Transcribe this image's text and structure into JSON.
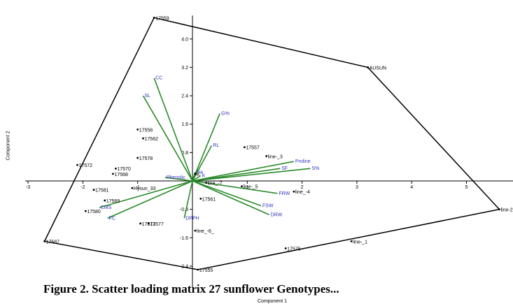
{
  "caption": "Figure 2. Scatter loading matrix 27 sunflower Genotypes...",
  "chart_data": {
    "type": "biplot",
    "xlabel": "Component 1",
    "ylabel": "Component 2",
    "xlim": [
      -3,
      6
    ],
    "ylim": [
      -2.8,
      4.7
    ],
    "x_ticks": [
      -3,
      -2,
      -1,
      1,
      2,
      3,
      4,
      5
    ],
    "y_ticks": [
      -2.4,
      -1.6,
      -0.8,
      0.8,
      1.6,
      2.4,
      3.2,
      4.0
    ],
    "grid": false,
    "points": [
      {
        "label": "17559",
        "x": -0.7,
        "y": 4.6
      },
      {
        "label": "AUSUN",
        "x": 3.2,
        "y": 3.2
      },
      {
        "label": "line-2",
        "x": 5.6,
        "y": -0.8
      },
      {
        "label": "line-_1",
        "x": 2.9,
        "y": -1.7
      },
      {
        "label": "17575",
        "x": 1.7,
        "y": -1.9
      },
      {
        "label": "17555",
        "x": 0.1,
        "y": -2.5
      },
      {
        "label": "17587",
        "x": -2.7,
        "y": -1.7
      },
      {
        "label": "17572",
        "x": -2.1,
        "y": 0.45
      },
      {
        "label": "17558",
        "x": -1.0,
        "y": 1.45
      },
      {
        "label": "17562",
        "x": -0.9,
        "y": 1.2
      },
      {
        "label": "17578",
        "x": -1.0,
        "y": 0.65
      },
      {
        "label": "17570",
        "x": -1.4,
        "y": 0.35
      },
      {
        "label": "17568",
        "x": -1.45,
        "y": 0.2
      },
      {
        "label": "17581",
        "x": -1.8,
        "y": -0.25
      },
      {
        "label": "Hysun_33",
        "x": -1.1,
        "y": -0.2
      },
      {
        "label": "17569",
        "x": -1.6,
        "y": -0.55
      },
      {
        "label": "17580",
        "x": -1.95,
        "y": -0.85
      },
      {
        "label": "17573",
        "x": -0.95,
        "y": -1.2
      },
      {
        "label": "17577",
        "x": -0.8,
        "y": -1.2
      },
      {
        "label": "17557",
        "x": 0.95,
        "y": 0.95
      },
      {
        "label": "line-_3",
        "x": 1.35,
        "y": 0.7
      },
      {
        "label": "line-_5",
        "x": 0.9,
        "y": -0.15
      },
      {
        "label": "line_-4",
        "x": 1.85,
        "y": -0.3
      },
      {
        "label": "17561",
        "x": 0.15,
        "y": -0.5
      },
      {
        "label": "line_-6_",
        "x": 0.05,
        "y": -1.4
      },
      {
        "label": "line_-7",
        "x": 0.25,
        "y": -0.05
      },
      {
        "label": "K",
        "x": 0.05,
        "y": 0.2
      }
    ],
    "hull": [
      "17559",
      "AUSUN",
      "line-2",
      "17555",
      "17587"
    ],
    "vectors": [
      {
        "label": "CC",
        "x": -0.7,
        "y": 2.9
      },
      {
        "label": "SL",
        "x": -0.9,
        "y": 2.4
      },
      {
        "label": "G%",
        "x": 0.5,
        "y": 1.9
      },
      {
        "label": "RL",
        "x": 0.35,
        "y": 1.0
      },
      {
        "label": "Proline",
        "x": 1.85,
        "y": 0.55
      },
      {
        "label": "SF",
        "x": 1.6,
        "y": 0.35
      },
      {
        "label": "S%",
        "x": 2.15,
        "y": 0.35
      },
      {
        "label": "FRW",
        "x": 1.55,
        "y": -0.35
      },
      {
        "label": "FSW",
        "x": 1.25,
        "y": -0.7
      },
      {
        "label": "DRW",
        "x": 1.4,
        "y": -0.95
      },
      {
        "label": "DPPH",
        "x": -0.15,
        "y": -1.05
      },
      {
        "label": "FC",
        "x": -1.55,
        "y": -1.05
      },
      {
        "label": "CMS",
        "x": -1.7,
        "y": -0.75
      },
      {
        "label": "Phenolic",
        "x": -0.5,
        "y": 0.1
      },
      {
        "label": "Na",
        "x": 0.05,
        "y": 0.25
      },
      {
        "label": "K",
        "x": 0.15,
        "y": 0.15
      }
    ]
  },
  "colors": {
    "vector": "#2a8a2a",
    "vector_label": "#3333bb",
    "hull": "#000000",
    "point": "#000000"
  }
}
